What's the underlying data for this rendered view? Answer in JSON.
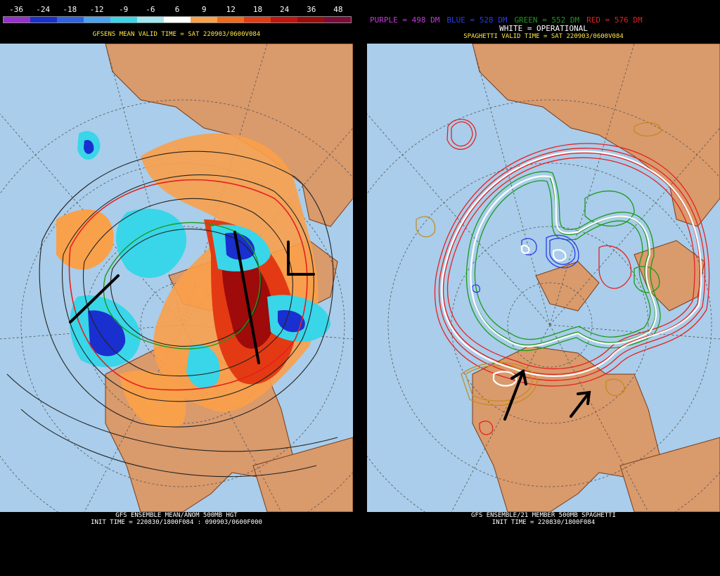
{
  "left": {
    "colorbar_ticks": [
      "-36",
      "-24",
      "-18",
      "-12",
      "-9",
      "-6",
      "6",
      "9",
      "12",
      "18",
      "24",
      "36",
      "48"
    ],
    "colorbar_colors": [
      "#9a2fd0",
      "#1a2fcf",
      "#2f63e6",
      "#4aa3f0",
      "#38d6e8",
      "#a0e8f0",
      "#ffffff",
      "#f9a04a",
      "#f26a18",
      "#e33a14",
      "#c4140c",
      "#9e0b0a",
      "#7d0b3a"
    ],
    "valid_time": "GFSENS MEAN VALID TIME = SAT 220903/0600V084",
    "caption_1": "GFS ENSEMBLE MEAN/ANOM 500MB HGT",
    "caption_2": "INIT TIME = 220830/1800F084 : 090903/0600F000"
  },
  "right": {
    "legend": [
      {
        "text": "PURPLE = 498 DM",
        "color": "#c23bd9"
      },
      {
        "text": "BLUE = 528 DM",
        "color": "#2b3be6"
      },
      {
        "text": "GREEN = 552 DM",
        "color": "#1a9a1a"
      },
      {
        "text": "RED = 576 DM",
        "color": "#e62020"
      }
    ],
    "operational": "WHITE = OPERATIONAL",
    "valid_time": "SPAGHETTI VALID TIME = SAT 220903/0600V084",
    "caption_1": "GFS ENSEMBLE/21 MEMBER 500MB SPAGHETTI",
    "caption_2": "INIT TIME = 220830/1800F084"
  },
  "colors": {
    "ocean": "#a9cdea",
    "land": "#d99a6c",
    "border": "#7a3b1a"
  }
}
